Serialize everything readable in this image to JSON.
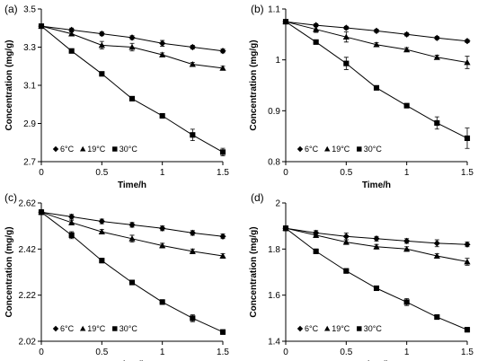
{
  "chart_data": [
    {
      "type": "scatter",
      "panel_label": "(a)",
      "xlabel": "Time/h",
      "ylabel": "Concentration (mg/g)",
      "xlim": [
        0,
        1.5
      ],
      "ylim": [
        2.7,
        3.5
      ],
      "x_ticks": [
        "0",
        "0.5",
        "1",
        "1.5"
      ],
      "y_ticks": [
        "2.7",
        "2.9",
        "3.1",
        "3.3",
        "3.5"
      ],
      "x_tick_values": [
        0,
        0.5,
        1,
        1.5
      ],
      "y_tick_values": [
        2.7,
        2.9,
        3.1,
        3.3,
        3.5
      ],
      "grid": false,
      "legend_position": "bottom-left",
      "series": [
        {
          "name": "6°C",
          "marker": "diamond",
          "x": [
            0,
            0.25,
            0.5,
            0.75,
            1,
            1.25,
            1.5
          ],
          "y": [
            3.41,
            3.39,
            3.37,
            3.35,
            3.32,
            3.3,
            3.28
          ],
          "err": [
            0.01,
            0.01,
            0.01,
            0.01,
            0.015,
            0.01,
            0.01
          ]
        },
        {
          "name": "19°C",
          "marker": "triangle",
          "x": [
            0,
            0.25,
            0.5,
            0.75,
            1,
            1.25,
            1.5
          ],
          "y": [
            3.41,
            3.37,
            3.31,
            3.3,
            3.26,
            3.21,
            3.19
          ],
          "err": [
            0.01,
            0.01,
            0.02,
            0.02,
            0.01,
            0.01,
            0.01
          ]
        },
        {
          "name": "30°C",
          "marker": "square",
          "x": [
            0,
            0.25,
            0.5,
            0.75,
            1,
            1.25,
            1.5
          ],
          "y": [
            3.41,
            3.28,
            3.16,
            3.03,
            2.94,
            2.84,
            2.75
          ],
          "err": [
            0.01,
            0.01,
            0.01,
            0.01,
            0.01,
            0.03,
            0.02
          ]
        }
      ]
    },
    {
      "type": "scatter",
      "panel_label": "(b)",
      "xlabel": "Time/h",
      "ylabel": "Concentration (mg/g)",
      "xlim": [
        0,
        1.5
      ],
      "ylim": [
        0.8,
        1.1
      ],
      "x_ticks": [
        "0",
        "0.5",
        "1",
        "1.5"
      ],
      "y_ticks": [
        "0.8",
        "0.9",
        "1",
        "1.1"
      ],
      "x_tick_values": [
        0,
        0.5,
        1,
        1.5
      ],
      "y_tick_values": [
        0.8,
        0.9,
        1,
        1.1
      ],
      "grid": false,
      "legend_position": "bottom-left",
      "series": [
        {
          "name": "6°C",
          "marker": "diamond",
          "x": [
            0,
            0.25,
            0.5,
            0.75,
            1,
            1.25,
            1.5
          ],
          "y": [
            1.075,
            1.068,
            1.063,
            1.057,
            1.05,
            1.043,
            1.037
          ],
          "err": [
            0.003,
            0.003,
            0.003,
            0.003,
            0.003,
            0.003,
            0.003
          ]
        },
        {
          "name": "19°C",
          "marker": "triangle",
          "x": [
            0,
            0.25,
            0.5,
            0.75,
            1,
            1.25,
            1.5
          ],
          "y": [
            1.075,
            1.06,
            1.045,
            1.03,
            1.02,
            1.005,
            0.995
          ],
          "err": [
            0.004,
            0.006,
            0.01,
            0.004,
            0.004,
            0.004,
            0.012
          ]
        },
        {
          "name": "30°C",
          "marker": "square",
          "x": [
            0,
            0.25,
            0.5,
            0.75,
            1,
            1.25,
            1.5
          ],
          "y": [
            1.075,
            1.035,
            0.993,
            0.945,
            0.91,
            0.876,
            0.846
          ],
          "err": [
            0.004,
            0.004,
            0.012,
            0.004,
            0.004,
            0.012,
            0.02
          ]
        }
      ]
    },
    {
      "type": "scatter",
      "panel_label": "(c)",
      "xlabel": "Time/h",
      "ylabel": "Concentration  (mg/g)",
      "xlim": [
        0,
        1.5
      ],
      "ylim": [
        2.02,
        2.62
      ],
      "x_ticks": [
        "0",
        "0.5",
        "1",
        "1.5"
      ],
      "y_ticks": [
        "2.02",
        "2.22",
        "2.42",
        "2.62"
      ],
      "x_tick_values": [
        0,
        0.5,
        1,
        1.5
      ],
      "y_tick_values": [
        2.02,
        2.22,
        2.42,
        2.62
      ],
      "grid": false,
      "legend_position": "bottom-left",
      "series": [
        {
          "name": "6°C",
          "marker": "diamond",
          "x": [
            0,
            0.25,
            0.5,
            0.75,
            1,
            1.25,
            1.5
          ],
          "y": [
            2.58,
            2.56,
            2.54,
            2.525,
            2.51,
            2.49,
            2.475
          ],
          "err": [
            0.01,
            0.01,
            0.01,
            0.01,
            0.01,
            0.01,
            0.01
          ]
        },
        {
          "name": "19°C",
          "marker": "triangle",
          "x": [
            0,
            0.25,
            0.5,
            0.75,
            1,
            1.25,
            1.5
          ],
          "y": [
            2.58,
            2.535,
            2.495,
            2.465,
            2.435,
            2.41,
            2.39
          ],
          "err": [
            0.01,
            0.01,
            0.01,
            0.015,
            0.01,
            0.01,
            0.01
          ]
        },
        {
          "name": "30°C",
          "marker": "square",
          "x": [
            0,
            0.25,
            0.5,
            0.75,
            1,
            1.25,
            1.5
          ],
          "y": [
            2.58,
            2.48,
            2.37,
            2.275,
            2.19,
            2.12,
            2.06
          ],
          "err": [
            0.01,
            0.015,
            0.01,
            0.01,
            0.01,
            0.015,
            0.01
          ]
        }
      ]
    },
    {
      "type": "scatter",
      "panel_label": "(d)",
      "xlabel": "Time/h",
      "ylabel": "Concentration (mg/g)",
      "xlim": [
        0,
        1.5
      ],
      "ylim": [
        1.4,
        2.0
      ],
      "x_ticks": [
        "0",
        "0.5",
        "1",
        "1.5"
      ],
      "y_ticks": [
        "1.4",
        "1.6",
        "1.8",
        "2"
      ],
      "x_tick_values": [
        0,
        0.5,
        1,
        1.5
      ],
      "y_tick_values": [
        1.4,
        1.6,
        1.8,
        2.0
      ],
      "grid": false,
      "legend_position": "bottom-left",
      "series": [
        {
          "name": "6°C",
          "marker": "diamond",
          "x": [
            0,
            0.25,
            0.5,
            0.75,
            1,
            1.25,
            1.5
          ],
          "y": [
            1.89,
            1.87,
            1.855,
            1.845,
            1.835,
            1.825,
            1.82
          ],
          "err": [
            0.01,
            0.01,
            0.015,
            0.01,
            0.01,
            0.015,
            0.01
          ]
        },
        {
          "name": "19°C",
          "marker": "triangle",
          "x": [
            0,
            0.25,
            0.5,
            0.75,
            1,
            1.25,
            1.5
          ],
          "y": [
            1.89,
            1.86,
            1.83,
            1.81,
            1.8,
            1.77,
            1.745
          ],
          "err": [
            0.01,
            0.01,
            0.01,
            0.01,
            0.01,
            0.01,
            0.015
          ]
        },
        {
          "name": "30°C",
          "marker": "square",
          "x": [
            0,
            0.25,
            0.5,
            0.75,
            1,
            1.25,
            1.5
          ],
          "y": [
            1.89,
            1.79,
            1.705,
            1.63,
            1.57,
            1.505,
            1.45
          ],
          "err": [
            0.01,
            0.01,
            0.01,
            0.01,
            0.015,
            0.01,
            0.01
          ]
        }
      ]
    }
  ]
}
